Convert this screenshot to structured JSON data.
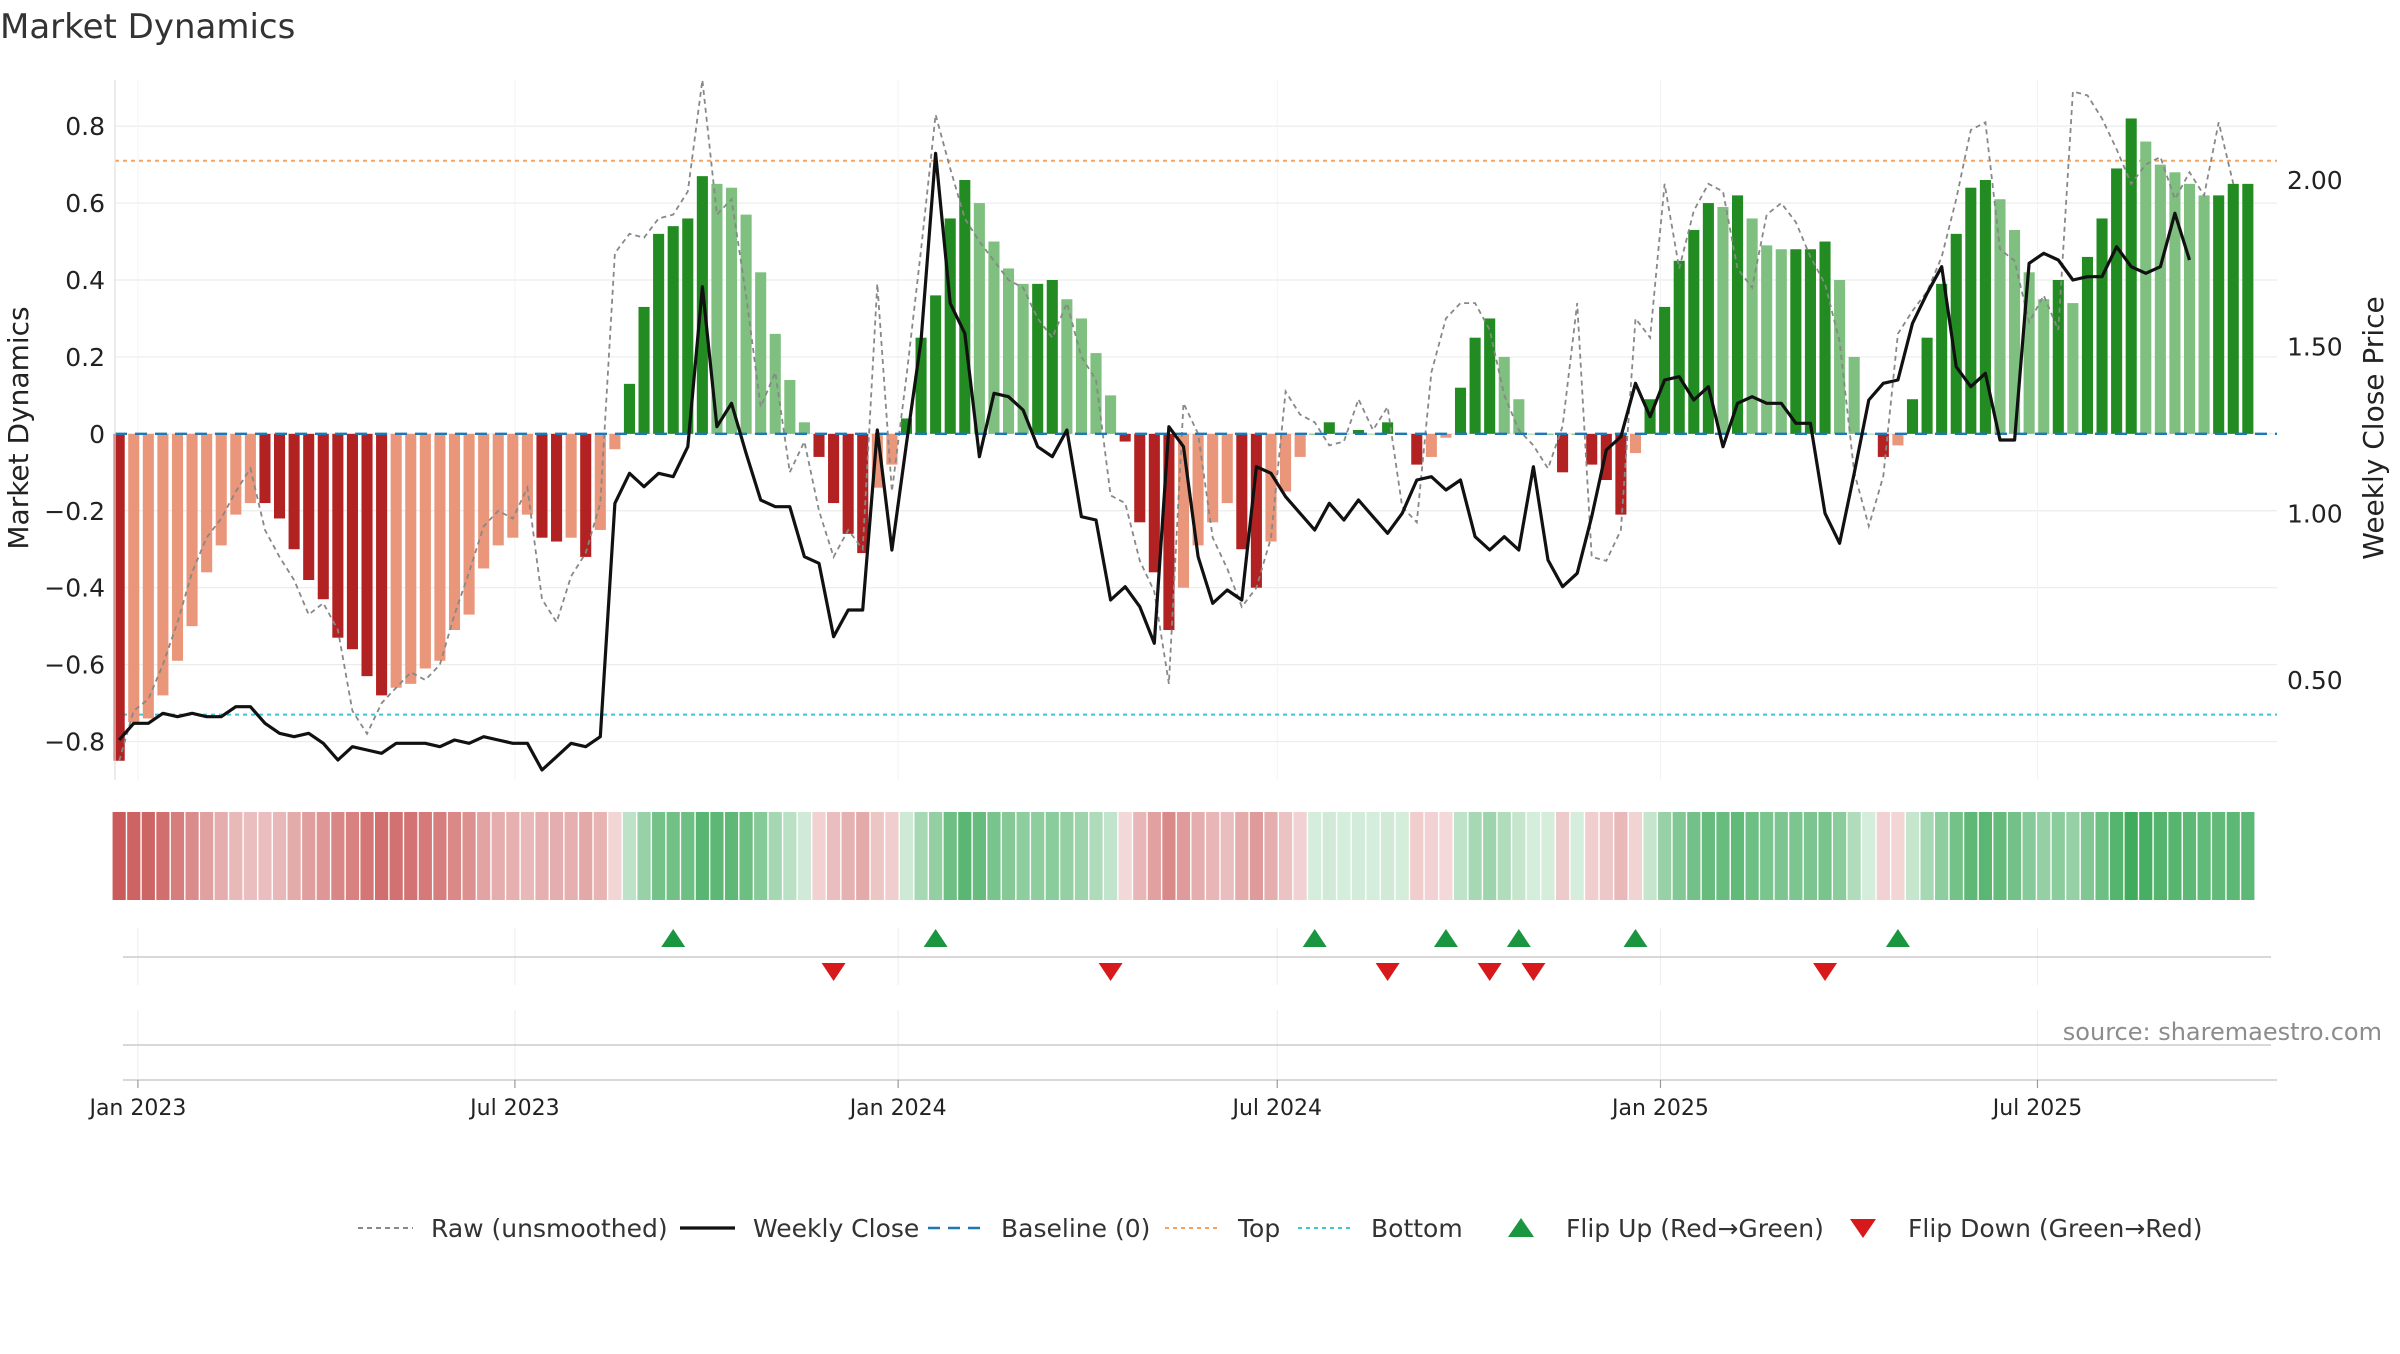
{
  "chart_data": {
    "type": "bar",
    "title": "Market Dynamics",
    "ylabel_left": "Market Dynamics",
    "ylabel_right": "Weekly Close Price",
    "source": "source: sharemaestro.com",
    "x_ticks": [
      {
        "label": "Jan 2023",
        "date": "2023-01-01"
      },
      {
        "label": "Jul 2023",
        "date": "2023-07-01"
      },
      {
        "label": "Jan 2024",
        "date": "2024-01-01"
      },
      {
        "label": "Jul 2024",
        "date": "2024-07-01"
      },
      {
        "label": "Jan 2025",
        "date": "2025-01-01"
      },
      {
        "label": "Jul 2025",
        "date": "2025-07-01"
      }
    ],
    "x_range": [
      "2022-12-21",
      "2025-10-24"
    ],
    "ylim_left": [
      -0.9,
      0.92
    ],
    "yticks_left": [
      "−0.8",
      "−0.6",
      "−0.4",
      "−0.2",
      "0",
      "0.2",
      "0.4",
      "0.6",
      "0.8"
    ],
    "yticks_left_values": [
      -0.8,
      -0.6,
      -0.4,
      -0.2,
      0,
      0.2,
      0.4,
      0.6,
      0.8
    ],
    "ylim_right": [
      0.2,
      2.3
    ],
    "yticks_right": [
      "0.50",
      "1.00",
      "1.50",
      "2.00"
    ],
    "yticks_right_values": [
      0.5,
      1.0,
      1.5,
      2.0
    ],
    "top_level": 0.71,
    "bottom_level": -0.73,
    "baseline": 0,
    "first_week": "2022-12-23",
    "colors": {
      "strong_green": "#228b22",
      "light_green": "#7fbf7f",
      "strong_red": "#b22222",
      "light_red": "#e9967a",
      "top_line": "#f4a460",
      "bottom_line": "#40c4d8",
      "baseline": "#1f77b4",
      "close_line": "#111111",
      "raw_line": "#888888",
      "flip_up": "#1a9641",
      "flip_down": "#d7191c"
    },
    "series": [
      {
        "name": "Market Dynamics",
        "values": [
          -0.85,
          -0.75,
          -0.74,
          -0.68,
          -0.59,
          -0.5,
          -0.36,
          -0.29,
          -0.21,
          -0.18,
          -0.18,
          -0.22,
          -0.3,
          -0.38,
          -0.43,
          -0.53,
          -0.56,
          -0.63,
          -0.68,
          -0.66,
          -0.65,
          -0.61,
          -0.59,
          -0.51,
          -0.47,
          -0.35,
          -0.29,
          -0.27,
          -0.21,
          -0.27,
          -0.28,
          -0.27,
          -0.32,
          -0.25,
          -0.04,
          0.13,
          0.33,
          0.52,
          0.54,
          0.56,
          0.67,
          0.65,
          0.64,
          0.57,
          0.42,
          0.26,
          0.14,
          0.03,
          -0.06,
          -0.18,
          -0.26,
          -0.31,
          -0.14,
          -0.08,
          0.04,
          0.25,
          0.36,
          0.56,
          0.66,
          0.6,
          0.5,
          0.43,
          0.39,
          0.39,
          0.4,
          0.35,
          0.3,
          0.21,
          0.1,
          -0.02,
          -0.23,
          -0.36,
          -0.51,
          -0.4,
          -0.29,
          -0.23,
          -0.18,
          -0.3,
          -0.4,
          -0.28,
          -0.15,
          -0.06,
          0.0,
          0.03,
          0.0,
          0.01,
          0.0,
          0.03,
          0.0,
          -0.08,
          -0.06,
          -0.01,
          0.12,
          0.25,
          0.3,
          0.2,
          0.09,
          0.0,
          0.0,
          -0.1,
          0.0,
          -0.08,
          -0.12,
          -0.21,
          -0.05,
          0.09,
          0.33,
          0.45,
          0.53,
          0.6,
          0.59,
          0.62,
          0.56,
          0.49,
          0.48,
          0.48,
          0.48,
          0.5,
          0.4,
          0.2,
          0.0,
          -0.06,
          -0.03,
          0.09,
          0.25,
          0.39,
          0.52,
          0.64,
          0.66,
          0.61,
          0.53,
          0.42,
          0.35,
          0.4,
          0.34,
          0.46,
          0.56,
          0.69,
          0.82,
          0.76,
          0.7,
          0.68,
          0.65,
          0.62,
          0.62,
          0.65,
          0.65
        ]
      },
      {
        "name": "Raw (unsmoothed)",
        "values": [
          -0.85,
          -0.72,
          -0.69,
          -0.6,
          -0.49,
          -0.36,
          -0.27,
          -0.22,
          -0.15,
          -0.09,
          -0.25,
          -0.32,
          -0.38,
          -0.47,
          -0.44,
          -0.51,
          -0.72,
          -0.78,
          -0.7,
          -0.66,
          -0.62,
          -0.64,
          -0.6,
          -0.47,
          -0.36,
          -0.24,
          -0.2,
          -0.22,
          -0.14,
          -0.43,
          -0.49,
          -0.37,
          -0.31,
          -0.18,
          0.47,
          0.52,
          0.51,
          0.56,
          0.57,
          0.63,
          0.92,
          0.57,
          0.61,
          0.36,
          0.07,
          0.16,
          -0.1,
          -0.02,
          -0.2,
          -0.32,
          -0.25,
          -0.3,
          0.39,
          -0.15,
          0.15,
          0.48,
          0.83,
          0.69,
          0.56,
          0.5,
          0.45,
          0.4,
          0.38,
          0.3,
          0.25,
          0.34,
          0.2,
          0.14,
          -0.16,
          -0.18,
          -0.33,
          -0.41,
          -0.65,
          0.08,
          0.0,
          -0.27,
          -0.35,
          -0.45,
          -0.4,
          -0.27,
          0.11,
          0.05,
          0.03,
          -0.03,
          -0.02,
          0.09,
          0.01,
          0.07,
          -0.19,
          -0.23,
          0.16,
          0.3,
          0.34,
          0.34,
          0.27,
          0.1,
          0.01,
          -0.03,
          -0.09,
          0.02,
          0.34,
          -0.32,
          -0.33,
          -0.25,
          0.3,
          0.25,
          0.65,
          0.43,
          0.58,
          0.65,
          0.63,
          0.43,
          0.38,
          0.57,
          0.6,
          0.55,
          0.46,
          0.39,
          0.24,
          -0.1,
          -0.24,
          -0.11,
          0.26,
          0.32,
          0.37,
          0.46,
          0.61,
          0.79,
          0.81,
          0.48,
          0.45,
          0.29,
          0.36,
          0.27,
          0.89,
          0.88,
          0.82,
          0.74,
          0.65,
          0.7,
          0.72,
          0.61,
          0.68,
          0.62,
          0.81,
          0.65
        ]
      },
      {
        "name": "Weekly Close",
        "values": [
          0.32,
          0.37,
          0.37,
          0.4,
          0.39,
          0.4,
          0.39,
          0.39,
          0.42,
          0.42,
          0.37,
          0.34,
          0.33,
          0.34,
          0.31,
          0.26,
          0.3,
          0.29,
          0.28,
          0.31,
          0.31,
          0.31,
          0.3,
          0.32,
          0.31,
          0.33,
          0.32,
          0.31,
          0.31,
          0.23,
          0.27,
          0.31,
          0.3,
          0.33,
          1.03,
          1.12,
          1.08,
          1.12,
          1.11,
          1.2,
          1.68,
          1.26,
          1.33,
          1.18,
          1.04,
          1.02,
          1.02,
          0.87,
          0.85,
          0.63,
          0.71,
          0.71,
          1.25,
          0.89,
          1.21,
          1.52,
          2.08,
          1.63,
          1.54,
          1.17,
          1.36,
          1.35,
          1.31,
          1.2,
          1.17,
          1.25,
          0.99,
          0.98,
          0.74,
          0.78,
          0.72,
          0.61,
          1.26,
          1.2,
          0.87,
          0.73,
          0.77,
          0.74,
          1.14,
          1.12,
          1.05,
          1.0,
          0.95,
          1.03,
          0.98,
          1.04,
          0.99,
          0.94,
          1.0,
          1.1,
          1.11,
          1.07,
          1.1,
          0.93,
          0.89,
          0.93,
          0.89,
          1.14,
          0.86,
          0.78,
          0.82,
          0.99,
          1.19,
          1.23,
          1.39,
          1.29,
          1.4,
          1.41,
          1.34,
          1.38,
          1.2,
          1.33,
          1.35,
          1.33,
          1.33,
          1.27,
          1.27,
          1.0,
          0.91,
          1.12,
          1.34,
          1.39,
          1.4,
          1.57,
          1.66,
          1.74,
          1.44,
          1.38,
          1.42,
          1.22,
          1.22,
          1.75,
          1.78,
          1.76,
          1.7,
          1.71,
          1.71,
          1.8,
          1.74,
          1.72,
          1.74,
          1.9,
          1.76
        ]
      }
    ],
    "regime_strip": [
      0.85,
      0.75,
      0.74,
      0.68,
      0.59,
      0.5,
      0.36,
      0.29,
      0.21,
      0.18,
      0.18,
      0.22,
      0.3,
      0.38,
      0.43,
      0.53,
      0.56,
      0.63,
      0.68,
      0.66,
      0.65,
      0.61,
      0.59,
      0.51,
      0.47,
      0.35,
      0.29,
      0.27,
      0.21,
      0.27,
      0.28,
      0.27,
      0.32,
      0.25,
      0.04,
      0.13,
      0.33,
      0.52,
      0.54,
      0.56,
      0.67,
      0.65,
      0.64,
      0.57,
      0.42,
      0.26,
      0.14,
      0.03,
      0.06,
      0.18,
      0.26,
      0.31,
      0.14,
      0.08,
      0.04,
      0.25,
      0.36,
      0.56,
      0.66,
      0.6,
      0.5,
      0.43,
      0.39,
      0.39,
      0.4,
      0.35,
      0.3,
      0.21,
      0.1,
      0.02,
      0.23,
      0.36,
      0.51,
      0.4,
      0.29,
      0.23,
      0.18,
      0.3,
      0.4,
      0.28,
      0.15,
      0.06,
      0.0,
      0.03,
      0.0,
      0.01,
      0.0,
      0.03,
      0.0,
      0.08,
      0.06,
      0.01,
      0.12,
      0.25,
      0.3,
      0.2,
      0.09,
      0.0,
      0.0,
      0.1,
      0.0,
      0.08,
      0.12,
      0.21,
      0.05,
      0.09,
      0.33,
      0.45,
      0.53,
      0.6,
      0.59,
      0.62,
      0.56,
      0.49,
      0.48,
      0.48,
      0.48,
      0.5,
      0.4,
      0.2,
      0.0,
      0.06,
      0.03,
      0.09,
      0.25,
      0.39,
      0.52,
      0.64,
      0.66,
      0.61,
      0.53,
      0.42,
      0.35,
      0.4,
      0.34,
      0.46,
      0.56,
      0.69,
      0.82,
      0.76,
      0.7,
      0.68,
      0.65,
      0.62,
      0.62,
      0.65,
      0.65
    ],
    "flips": {
      "up": [
        "2023-09-15",
        "2024-01-19",
        "2024-07-19",
        "2024-09-20",
        "2024-10-25",
        "2024-12-20",
        "2025-04-25"
      ],
      "down": [
        "2023-12-01",
        "2024-04-12",
        "2024-08-23",
        "2024-10-11",
        "2024-11-01",
        "2025-03-21"
      ]
    },
    "legend": [
      {
        "label": "Raw (unsmoothed)",
        "icon": "dashed-gray-line"
      },
      {
        "label": "Weekly Close",
        "icon": "solid-black-line"
      },
      {
        "label": "Baseline (0)",
        "icon": "dashed-blue-line"
      },
      {
        "label": "Top",
        "icon": "dotted-orange-line"
      },
      {
        "label": "Bottom",
        "icon": "dotted-cyan-line"
      },
      {
        "label": "Flip Up (Red→Green)",
        "icon": "green-up-triangle"
      },
      {
        "label": "Flip Down (Green→Red)",
        "icon": "red-down-triangle"
      }
    ],
    "legend_position": "bottom-center"
  }
}
